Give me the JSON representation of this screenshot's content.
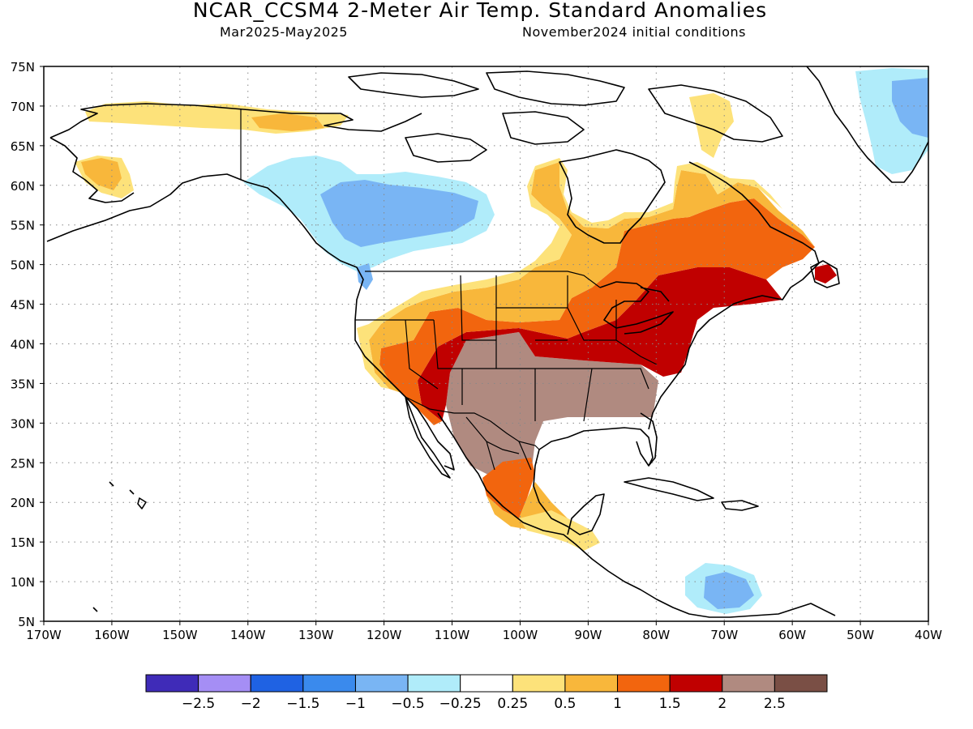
{
  "header": {
    "title": "NCAR_CCSM4 2-Meter Air Temp. Standard Anomalies",
    "period": "Mar2025-May2025",
    "init": "November2024 initial conditions"
  },
  "map": {
    "lat_labels": [
      "75N",
      "70N",
      "65N",
      "60N",
      "55N",
      "50N",
      "45N",
      "40N",
      "35N",
      "30N",
      "25N",
      "20N",
      "15N",
      "10N",
      "5N"
    ],
    "lon_labels": [
      "170W",
      "160W",
      "150W",
      "140W",
      "130W",
      "120W",
      "110W",
      "100W",
      "90W",
      "80W",
      "70W",
      "60W",
      "50W",
      "40W"
    ],
    "extent": {
      "lon_min": -170,
      "lon_max": -40,
      "lat_min": 5,
      "lat_max": 75
    }
  },
  "colorbar": {
    "colors": [
      "#3f2bb8",
      "#a58ef5",
      "#1f62e3",
      "#3a8aed",
      "#79b5f4",
      "#b0ecfa",
      "#ffffff",
      "#fde27a",
      "#f8b73b",
      "#f2650e",
      "#c00000",
      "#b08a80",
      "#7a4f45"
    ],
    "labels": [
      "-2.5",
      "-2",
      "-1.5",
      "-1",
      "-0.5",
      "-0.25",
      "0.25",
      "0.5",
      "1",
      "1.5",
      "2",
      "2.5"
    ]
  }
}
